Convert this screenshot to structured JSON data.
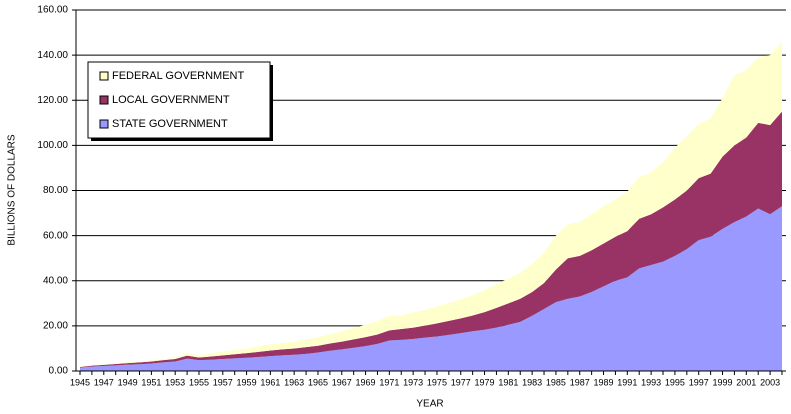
{
  "chart_data": {
    "type": "stacked-area",
    "y_label": "BILLIONS OF DOLLARS",
    "x_label": "YEAR",
    "categories": [
      "1945",
      null,
      "1947",
      null,
      "1949",
      null,
      "1951",
      null,
      "1953",
      null,
      "1955",
      null,
      "1957",
      null,
      "1959",
      null,
      "1961",
      null,
      "1963",
      null,
      "1965",
      null,
      "1967",
      null,
      "1969",
      null,
      "1971",
      null,
      "1973",
      null,
      "1975",
      null,
      "1977",
      null,
      "1979",
      null,
      "1981",
      null,
      "1983",
      null,
      "1985",
      null,
      "1987",
      null,
      "1989",
      null,
      "1991",
      null,
      "1993",
      null,
      "1995",
      null,
      "1997",
      null,
      "1999",
      null,
      "2001",
      null,
      "2003",
      null
    ],
    "series": [
      {
        "name": "STATE GOVERNMENT",
        "color": "#9999ff",
        "values": [
          1.5,
          2.0,
          2.2,
          2.5,
          2.8,
          3.0,
          3.3,
          3.8,
          4.2,
          5.5,
          4.8,
          5.0,
          5.3,
          5.6,
          5.9,
          6.2,
          6.6,
          6.9,
          7.2,
          7.6,
          8.2,
          9.0,
          9.6,
          10.3,
          11.0,
          12.0,
          13.5,
          13.8,
          14.2,
          14.8,
          15.3,
          16.0,
          16.8,
          17.6,
          18.3,
          19.2,
          20.5,
          21.8,
          24.5,
          27.5,
          30.5,
          32.0,
          33.0,
          35.0,
          37.5,
          40.0,
          41.5,
          45.5,
          47.0,
          48.5,
          51.0,
          54.0,
          58.0,
          59.5,
          63.0,
          66.0,
          68.5,
          72.0,
          69.5,
          73.0
        ]
      },
      {
        "name": "LOCAL GOVERNMENT",
        "color": "#993366",
        "values": [
          0.3,
          0.4,
          0.5,
          0.6,
          0.7,
          0.8,
          0.9,
          1.0,
          1.1,
          1.3,
          1.2,
          1.4,
          1.6,
          1.8,
          2.0,
          2.3,
          2.5,
          2.7,
          2.8,
          3.0,
          3.0,
          3.2,
          3.4,
          3.7,
          4.0,
          4.2,
          4.5,
          4.8,
          5.0,
          5.3,
          5.8,
          6.2,
          6.5,
          7.0,
          7.8,
          8.8,
          9.5,
          10.2,
          10.5,
          11.5,
          14.5,
          18.0,
          18.0,
          18.5,
          19.0,
          19.5,
          20.5,
          22.0,
          22.5,
          24.0,
          25.0,
          26.0,
          27.5,
          28.0,
          32.0,
          34.0,
          35.0,
          38.0,
          39.5,
          42.0
        ]
      },
      {
        "name": "FEDERAL GOVERNMENT",
        "color": "#ffffcc",
        "values": [
          0.2,
          0.3,
          0.3,
          0.4,
          0.4,
          0.4,
          0.5,
          0.6,
          0.7,
          1.2,
          1.0,
          1.5,
          1.8,
          1.9,
          2.0,
          2.5,
          2.7,
          2.9,
          3.1,
          3.4,
          3.8,
          4.1,
          4.6,
          5.0,
          5.5,
          6.0,
          6.5,
          6.0,
          6.8,
          7.0,
          7.5,
          8.0,
          8.5,
          9.0,
          9.8,
          10.5,
          11.0,
          11.5,
          12.5,
          13.5,
          15.0,
          15.0,
          15.0,
          16.0,
          16.5,
          16.5,
          17.5,
          18.5,
          18.5,
          20.0,
          23.0,
          24.0,
          24.0,
          24.5,
          26.0,
          31.0,
          30.0,
          29.0,
          31.0,
          31.0
        ]
      }
    ],
    "ylim": [
      0,
      160
    ],
    "yticks": [
      {
        "value": 0,
        "label": "0.00"
      },
      {
        "value": 20,
        "label": "20.00"
      },
      {
        "value": 40,
        "label": "40.00"
      },
      {
        "value": 60,
        "label": "60.00"
      },
      {
        "value": 80,
        "label": "80.00"
      },
      {
        "value": 100,
        "label": "100.00"
      },
      {
        "value": 120,
        "label": "120.00"
      },
      {
        "value": 140,
        "label": "140.00"
      },
      {
        "value": 160,
        "label": "160.00"
      }
    ],
    "grid": true,
    "legend": "upper-left"
  }
}
